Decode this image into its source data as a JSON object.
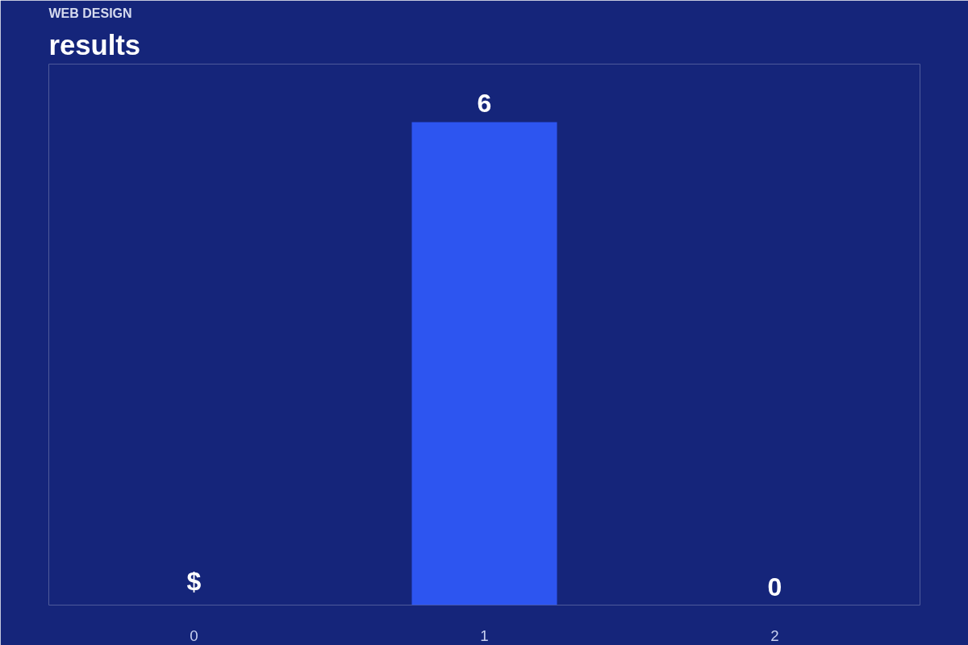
{
  "chart_data": {
    "type": "bar",
    "subtitle": "WEB DESIGN",
    "title": "results",
    "categories": [
      "0",
      "1",
      "2"
    ],
    "values": [
      0,
      6,
      0
    ],
    "color": "#2d55f0",
    "value_labels": [
      "$",
      "6",
      "0"
    ],
    "grid": false
  }
}
